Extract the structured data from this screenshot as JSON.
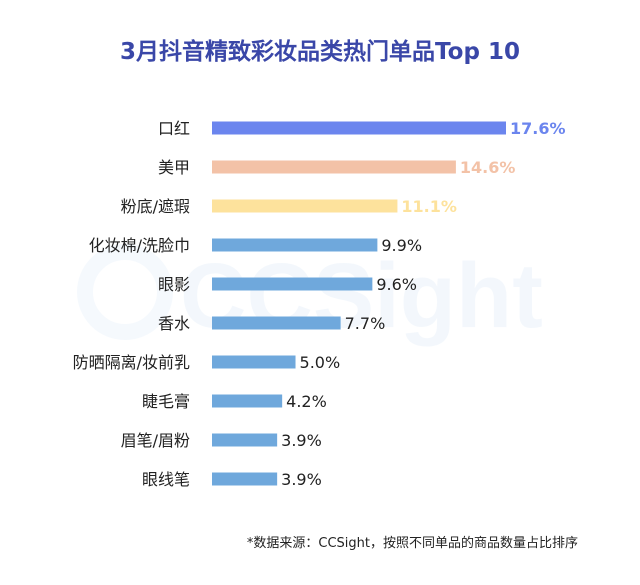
{
  "title": "3月抖音精致彩妆品类热门单品Top 10",
  "watermark_text": "CCSight",
  "footnote": "*数据来源：CCSight，按照不同单品的商品数量占比排序",
  "chart_data": {
    "type": "bar",
    "orientation": "horizontal",
    "title": "3月抖音精致彩妆品类热门单品Top 10",
    "categories": [
      "口红",
      "美甲",
      "粉底/遮瑕",
      "化妆棉/洗脸巾",
      "眼影",
      "香水",
      "防晒隔离/妆前乳",
      "睫毛膏",
      "眉笔/眉粉",
      "眼线笔"
    ],
    "values": [
      17.6,
      14.6,
      11.1,
      9.9,
      9.6,
      7.7,
      5.0,
      4.2,
      3.9,
      3.9
    ],
    "labels": [
      "17.6%",
      "14.6%",
      "11.1%",
      "9.9%",
      "9.6%",
      "7.7%",
      "5.0%",
      "4.2%",
      "3.9%",
      "3.9%"
    ],
    "bar_colors": [
      "#6b85ee",
      "#f3c2a7",
      "#fde29c",
      "#6fa8dc",
      "#6fa8dc",
      "#6fa8dc",
      "#6fa8dc",
      "#6fa8dc",
      "#6fa8dc",
      "#6fa8dc"
    ],
    "label_colors": [
      "#6b85ee",
      "#f3c2a7",
      "#fde29c",
      "#222222",
      "#222222",
      "#222222",
      "#222222",
      "#222222",
      "#222222",
      "#222222"
    ],
    "xlim": [
      0,
      17.6
    ],
    "grid": false,
    "legend": "none"
  }
}
